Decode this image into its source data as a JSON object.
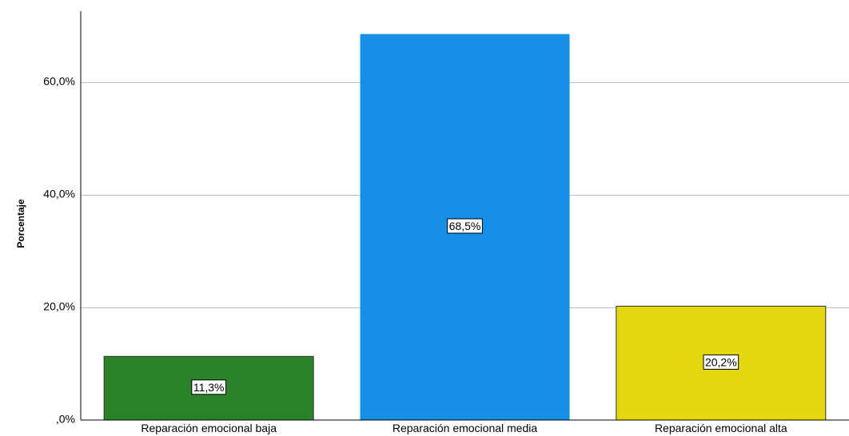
{
  "chart_data": {
    "type": "bar",
    "title": "",
    "xlabel": "",
    "ylabel": "Porcentaje",
    "ylim": [
      0,
      70
    ],
    "yticks": [
      0,
      20,
      40,
      60
    ],
    "ytick_labels": [
      ",0%",
      "20,0%",
      "40,0%",
      "60,0%"
    ],
    "grid": true,
    "categories": [
      "Reparación emocional baja",
      "Reparación emocional media",
      "Reparación emocional alta"
    ],
    "values": [
      11.3,
      68.5,
      20.2
    ],
    "value_labels": [
      "11,3%",
      "68,5%",
      "20,2%"
    ],
    "colors": [
      "#2a8229",
      "#1490e6",
      "#e3d70e"
    ]
  }
}
